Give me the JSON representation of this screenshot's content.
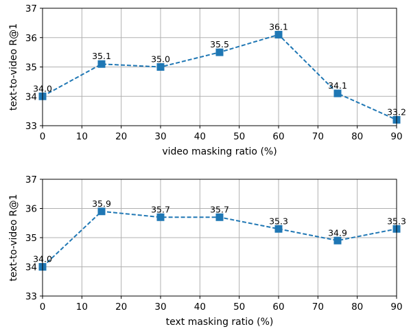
{
  "chart_data": [
    {
      "type": "line",
      "xlabel": "video masking ratio (%)",
      "ylabel": "text-to-video R@1",
      "x": [
        0,
        15,
        30,
        45,
        60,
        75,
        90
      ],
      "series": [
        {
          "values": [
            34.0,
            35.1,
            35.0,
            35.5,
            36.1,
            34.1,
            33.2
          ],
          "data_labels": [
            "34.0",
            "35.1",
            "35.0",
            "35.5",
            "36.1",
            "34.1",
            "33.2"
          ]
        }
      ],
      "xlim": [
        0,
        90
      ],
      "ylim": [
        33,
        37
      ],
      "xticks": [
        0,
        10,
        20,
        30,
        40,
        50,
        60,
        70,
        80,
        90
      ],
      "yticks": [
        33,
        34,
        35,
        36,
        37
      ],
      "grid": true,
      "marker": "square",
      "line_style": "dashed",
      "color": "#1f77b4"
    },
    {
      "type": "line",
      "xlabel": "text masking ratio (%)",
      "ylabel": "text-to-video R@1",
      "x": [
        0,
        15,
        30,
        45,
        60,
        75,
        90
      ],
      "series": [
        {
          "values": [
            34.0,
            35.9,
            35.7,
            35.7,
            35.3,
            34.9,
            35.3
          ],
          "data_labels": [
            "34.0",
            "35.9",
            "35.7",
            "35.7",
            "35.3",
            "34.9",
            "35.3"
          ]
        }
      ],
      "xlim": [
        0,
        90
      ],
      "ylim": [
        33,
        37
      ],
      "xticks": [
        0,
        10,
        20,
        30,
        40,
        50,
        60,
        70,
        80,
        90
      ],
      "yticks": [
        33,
        34,
        35,
        36,
        37
      ],
      "grid": true,
      "marker": "square",
      "line_style": "dashed",
      "color": "#1f77b4"
    }
  ]
}
